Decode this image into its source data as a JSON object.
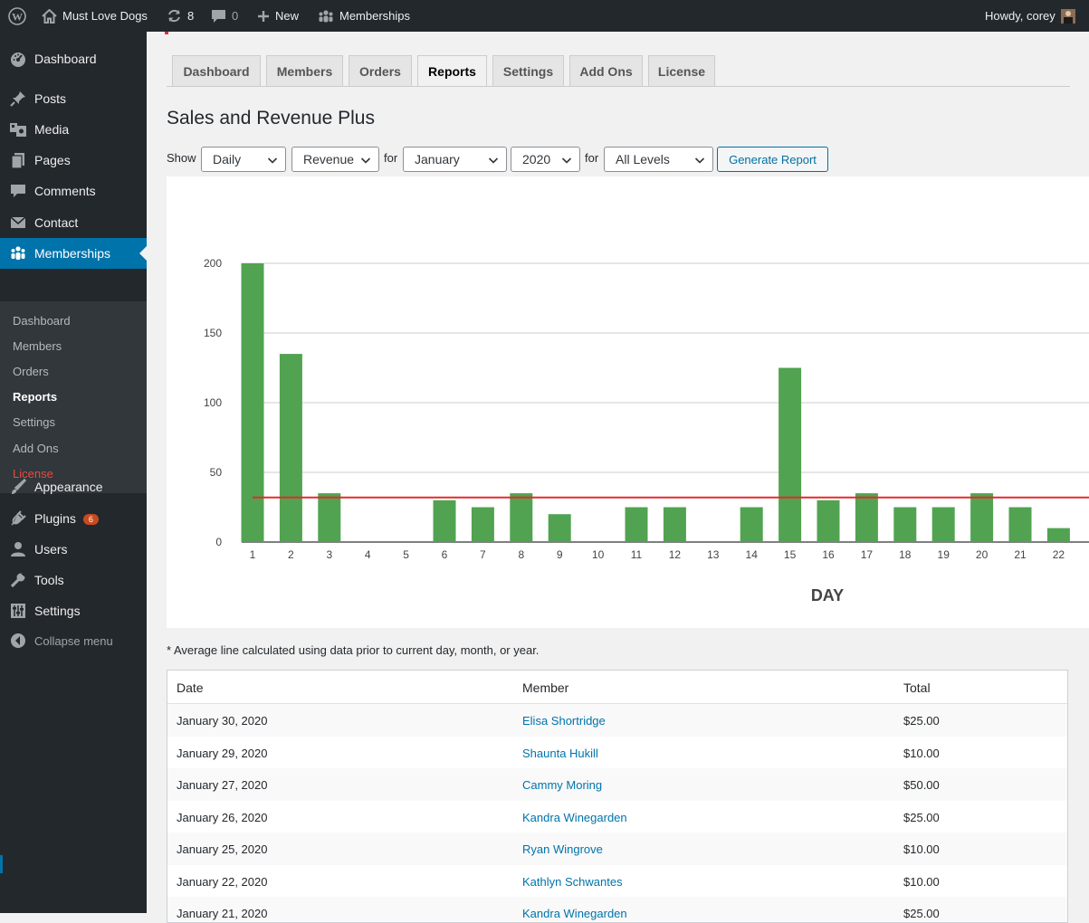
{
  "adminbar": {
    "site_name": "Must Love Dogs",
    "updates_count": "8",
    "comments_count": "0",
    "new_label": "New",
    "memberships_label": "Memberships",
    "howdy": "Howdy, corey"
  },
  "sidebar": {
    "items": [
      {
        "label": "Dashboard",
        "icon": "dashboard-icon"
      },
      {
        "label": "Posts",
        "icon": "pin-icon"
      },
      {
        "label": "Media",
        "icon": "media-icon"
      },
      {
        "label": "Pages",
        "icon": "pages-icon"
      },
      {
        "label": "Comments",
        "icon": "comment-icon"
      },
      {
        "label": "Contact",
        "icon": "mail-icon"
      },
      {
        "label": "Memberships",
        "icon": "groups-icon"
      }
    ],
    "submenu": [
      "Dashboard",
      "Members",
      "Orders",
      "Reports",
      "Settings",
      "Add Ons",
      "License"
    ],
    "lower_items": [
      {
        "label": "Appearance",
        "icon": "brush-icon"
      },
      {
        "label": "Plugins",
        "icon": "plug-icon",
        "badge": "6"
      },
      {
        "label": "Users",
        "icon": "user-icon"
      },
      {
        "label": "Tools",
        "icon": "wrench-icon"
      },
      {
        "label": "Settings",
        "icon": "sliders-icon"
      }
    ],
    "collapse_label": "Collapse menu"
  },
  "tabs": [
    "Dashboard",
    "Members",
    "Orders",
    "Reports",
    "Settings",
    "Add Ons",
    "License"
  ],
  "active_tab": "Reports",
  "page_title": "Sales and Revenue Plus",
  "filters": {
    "show_label": "Show",
    "period": "Daily",
    "type": "Revenue",
    "for_label_1": "for",
    "month": "January",
    "year": "2020",
    "for_label_2": "for",
    "level": "All Levels",
    "generate_label": "Generate Report"
  },
  "chart_data": {
    "type": "bar",
    "xlabel": "DAY",
    "ylabel": "",
    "categories": [
      "1",
      "2",
      "3",
      "4",
      "5",
      "6",
      "7",
      "8",
      "9",
      "10",
      "11",
      "12",
      "13",
      "14",
      "15",
      "16",
      "17",
      "18",
      "19",
      "20",
      "21",
      "22"
    ],
    "values": [
      200,
      135,
      35,
      0,
      0,
      30,
      25,
      35,
      20,
      0,
      25,
      25,
      0,
      25,
      125,
      30,
      35,
      25,
      25,
      35,
      25,
      10
    ],
    "yticks": [
      0,
      50,
      100,
      150,
      200
    ],
    "ylim": [
      0,
      200
    ],
    "average_line": 32,
    "bar_color": "#51a351",
    "average_color": "#e52b2b",
    "grid": true
  },
  "note": "* Average line calculated using data prior to current day, month, or year.",
  "table": {
    "headers": [
      "Date",
      "Member",
      "Total"
    ],
    "rows": [
      {
        "date": "January 30, 2020",
        "member": "Elisa Shortridge",
        "total": "$25.00"
      },
      {
        "date": "January 29, 2020",
        "member": "Shaunta Hukill",
        "total": "$10.00"
      },
      {
        "date": "January 27, 2020",
        "member": "Cammy Moring",
        "total": "$50.00"
      },
      {
        "date": "January 26, 2020",
        "member": "Kandra Winegarden",
        "total": "$25.00"
      },
      {
        "date": "January 25, 2020",
        "member": "Ryan Wingrove",
        "total": "$10.00"
      },
      {
        "date": "January 22, 2020",
        "member": "Kathlyn Schwantes",
        "total": "$10.00"
      },
      {
        "date": "January 21, 2020",
        "member": "Kandra Winegarden",
        "total": "$25.00"
      }
    ]
  }
}
